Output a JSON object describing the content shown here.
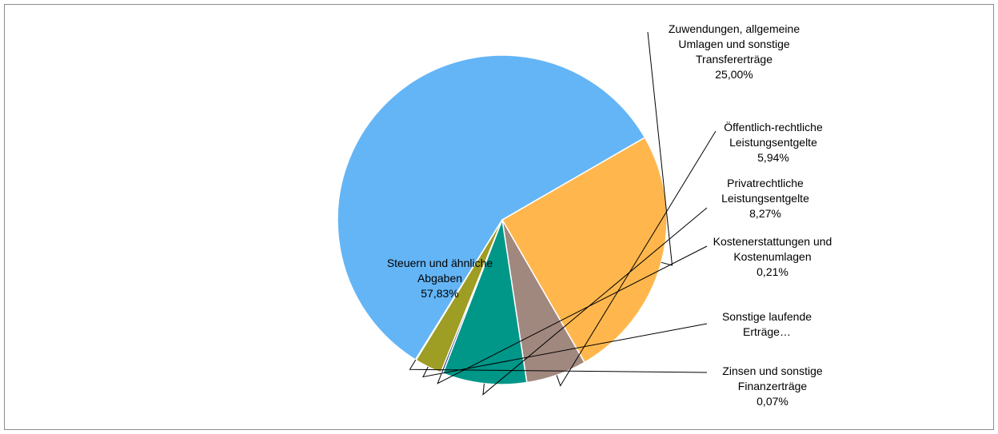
{
  "chart_data": {
    "type": "pie",
    "title": "",
    "slices": [
      {
        "name_lines": [
          "Zuwendungen, allgemeine",
          "Umlagen und sonstige",
          "Transfererträge"
        ],
        "value": 25.0,
        "label": "25,00%",
        "color": "#FFB74D"
      },
      {
        "name_lines": [
          "Öffentlich-rechtliche",
          "Leistungsentgelte"
        ],
        "value": 5.94,
        "label": "5,94%",
        "color": "#A1887F"
      },
      {
        "name_lines": [
          "Privatrechtliche",
          "Leistungsentgelte"
        ],
        "value": 8.27,
        "label": "8,27%",
        "color": "#009688"
      },
      {
        "name_lines": [
          "Kostenerstattungen und",
          "Kostenumlagen"
        ],
        "value": 0.21,
        "label": "0,21%",
        "color": "#1A237E"
      },
      {
        "name_lines": [
          "Sonstige laufende",
          "Erträge…"
        ],
        "value": 2.68,
        "label": "",
        "color": "#9E9D24"
      },
      {
        "name_lines": [
          "Zinsen und sonstige",
          "Finanzerträge"
        ],
        "value": 0.07,
        "label": "0,07%",
        "color": "#E53935"
      },
      {
        "name_lines": [
          "Steuern und ähnliche",
          "Abgaben"
        ],
        "value": 57.83,
        "label": "57,83%",
        "color": "#64B5F6"
      }
    ],
    "start_angle_deg": -30,
    "direction": "clockwise",
    "legend": "none"
  }
}
